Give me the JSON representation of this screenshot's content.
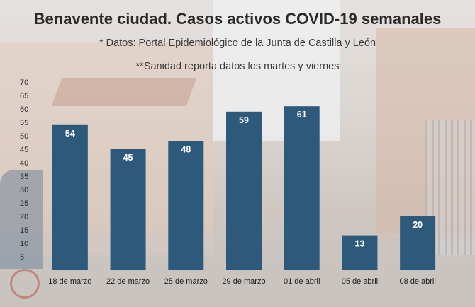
{
  "chart_data": {
    "type": "bar",
    "title": "Benavente ciudad. Casos activos COVID-19 semanales",
    "subtitle": "* Datos: Portal Epidemiológico de la Junta de Castilla y León",
    "note": "**Sanidad reporta datos los martes y viernes",
    "categories": [
      "18 de marzo",
      "22 de marzo",
      "25 de marzo",
      "29 de marzo",
      "01 de abril",
      "05 de abril",
      "08 de abril"
    ],
    "values": [
      54,
      45,
      48,
      59,
      61,
      13,
      20
    ],
    "ylim": [
      0,
      70
    ],
    "yticks": [
      5,
      10,
      15,
      20,
      25,
      30,
      35,
      40,
      45,
      50,
      55,
      60,
      65,
      70
    ],
    "xlabel": "",
    "ylabel": "",
    "bar_color": "#2d5a7b",
    "label_color": "#ffffff"
  }
}
